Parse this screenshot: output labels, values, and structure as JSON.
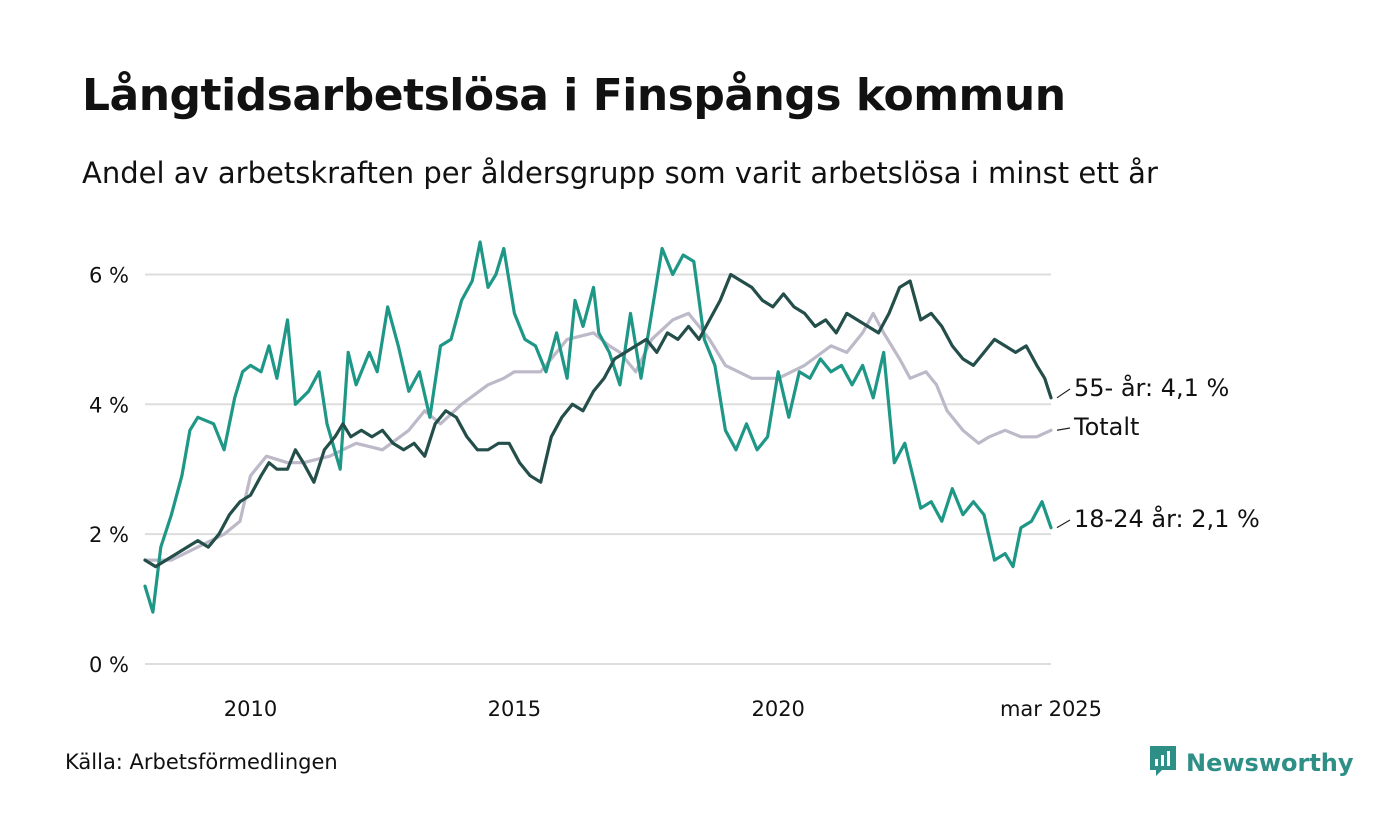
{
  "title": "Långtidsarbetslösa i Finspångs kommun",
  "subtitle": "Andel av arbetskraften per åldersgrupp som varit arbetslösa i minst ett år",
  "source": "Källa: Arbetsförmedlingen",
  "brand": "Newsworthy",
  "colors": {
    "age_55": "#234e4a",
    "total": "#bdb9c9",
    "age_18_24": "#1f9787",
    "grid": "#dddddd",
    "brand": "#2e8f86"
  },
  "chart_data": {
    "type": "line",
    "title": "Långtidsarbetslösa i Finspångs kommun",
    "subtitle": "Andel av arbetskraften per åldersgrupp som varit arbetslösa i minst ett år",
    "xlabel": "",
    "ylabel": "",
    "xlim": [
      2008.0,
      2025.17
    ],
    "ylim": [
      0,
      6.5
    ],
    "grid": true,
    "y_ticks": [
      {
        "value": 0,
        "label": "0 %"
      },
      {
        "value": 2,
        "label": "2 %"
      },
      {
        "value": 4,
        "label": "4 %"
      },
      {
        "value": 6,
        "label": "6 %"
      }
    ],
    "x_ticks": [
      {
        "value": 2010,
        "label": "2010"
      },
      {
        "value": 2015,
        "label": "2015"
      },
      {
        "value": 2020,
        "label": "2020"
      },
      {
        "value": 2025.17,
        "label": "mar 2025"
      }
    ],
    "series": [
      {
        "name": "Totalt",
        "label": "Totalt",
        "color_key": "total",
        "points": [
          [
            2008.0,
            1.6
          ],
          [
            2008.5,
            1.6
          ],
          [
            2009.0,
            1.8
          ],
          [
            2009.5,
            2.0
          ],
          [
            2009.8,
            2.2
          ],
          [
            2010.0,
            2.9
          ],
          [
            2010.3,
            3.2
          ],
          [
            2010.7,
            3.1
          ],
          [
            2011.0,
            3.1
          ],
          [
            2011.5,
            3.2
          ],
          [
            2012.0,
            3.4
          ],
          [
            2012.5,
            3.3
          ],
          [
            2013.0,
            3.6
          ],
          [
            2013.3,
            3.9
          ],
          [
            2013.6,
            3.7
          ],
          [
            2014.0,
            4.0
          ],
          [
            2014.5,
            4.3
          ],
          [
            2014.8,
            4.4
          ],
          [
            2015.0,
            4.5
          ],
          [
            2015.5,
            4.5
          ],
          [
            2016.0,
            5.0
          ],
          [
            2016.5,
            5.1
          ],
          [
            2016.8,
            4.9
          ],
          [
            2017.0,
            4.8
          ],
          [
            2017.3,
            4.5
          ],
          [
            2017.6,
            5.0
          ],
          [
            2018.0,
            5.3
          ],
          [
            2018.3,
            5.4
          ],
          [
            2018.7,
            5.0
          ],
          [
            2019.0,
            4.6
          ],
          [
            2019.5,
            4.4
          ],
          [
            2020.0,
            4.4
          ],
          [
            2020.5,
            4.6
          ],
          [
            2021.0,
            4.9
          ],
          [
            2021.3,
            4.8
          ],
          [
            2021.6,
            5.1
          ],
          [
            2021.8,
            5.4
          ],
          [
            2022.0,
            5.1
          ],
          [
            2022.3,
            4.7
          ],
          [
            2022.5,
            4.4
          ],
          [
            2022.8,
            4.5
          ],
          [
            2023.0,
            4.3
          ],
          [
            2023.2,
            3.9
          ],
          [
            2023.5,
            3.6
          ],
          [
            2023.8,
            3.4
          ],
          [
            2024.0,
            3.5
          ],
          [
            2024.3,
            3.6
          ],
          [
            2024.6,
            3.5
          ],
          [
            2024.9,
            3.5
          ],
          [
            2025.17,
            3.6
          ]
        ]
      },
      {
        "name": "18-24 år",
        "label": "18-24 år: 2,1 %",
        "color_key": "age_18_24",
        "points": [
          [
            2008.0,
            1.2
          ],
          [
            2008.15,
            0.8
          ],
          [
            2008.3,
            1.8
          ],
          [
            2008.5,
            2.3
          ],
          [
            2008.7,
            2.9
          ],
          [
            2008.85,
            3.6
          ],
          [
            2009.0,
            3.8
          ],
          [
            2009.3,
            3.7
          ],
          [
            2009.5,
            3.3
          ],
          [
            2009.7,
            4.1
          ],
          [
            2009.85,
            4.5
          ],
          [
            2010.0,
            4.6
          ],
          [
            2010.2,
            4.5
          ],
          [
            2010.35,
            4.9
          ],
          [
            2010.5,
            4.4
          ],
          [
            2010.7,
            5.3
          ],
          [
            2010.85,
            4.0
          ],
          [
            2011.1,
            4.2
          ],
          [
            2011.3,
            4.5
          ],
          [
            2011.45,
            3.7
          ],
          [
            2011.7,
            3.0
          ],
          [
            2011.85,
            4.8
          ],
          [
            2012.0,
            4.3
          ],
          [
            2012.25,
            4.8
          ],
          [
            2012.4,
            4.5
          ],
          [
            2012.6,
            5.5
          ],
          [
            2012.8,
            4.9
          ],
          [
            2013.0,
            4.2
          ],
          [
            2013.2,
            4.5
          ],
          [
            2013.4,
            3.8
          ],
          [
            2013.6,
            4.9
          ],
          [
            2013.8,
            5.0
          ],
          [
            2014.0,
            5.6
          ],
          [
            2014.2,
            5.9
          ],
          [
            2014.35,
            6.5
          ],
          [
            2014.5,
            5.8
          ],
          [
            2014.65,
            6.0
          ],
          [
            2014.8,
            6.4
          ],
          [
            2015.0,
            5.4
          ],
          [
            2015.2,
            5.0
          ],
          [
            2015.4,
            4.9
          ],
          [
            2015.6,
            4.5
          ],
          [
            2015.8,
            5.1
          ],
          [
            2016.0,
            4.4
          ],
          [
            2016.15,
            5.6
          ],
          [
            2016.3,
            5.2
          ],
          [
            2016.5,
            5.8
          ],
          [
            2016.6,
            5.1
          ],
          [
            2016.8,
            4.8
          ],
          [
            2017.0,
            4.3
          ],
          [
            2017.2,
            5.4
          ],
          [
            2017.4,
            4.4
          ],
          [
            2017.6,
            5.4
          ],
          [
            2017.8,
            6.4
          ],
          [
            2018.0,
            6.0
          ],
          [
            2018.2,
            6.3
          ],
          [
            2018.4,
            6.2
          ],
          [
            2018.6,
            5.0
          ],
          [
            2018.8,
            4.6
          ],
          [
            2019.0,
            3.6
          ],
          [
            2019.2,
            3.3
          ],
          [
            2019.4,
            3.7
          ],
          [
            2019.6,
            3.3
          ],
          [
            2019.8,
            3.5
          ],
          [
            2020.0,
            4.5
          ],
          [
            2020.2,
            3.8
          ],
          [
            2020.4,
            4.5
          ],
          [
            2020.6,
            4.4
          ],
          [
            2020.8,
            4.7
          ],
          [
            2021.0,
            4.5
          ],
          [
            2021.2,
            4.6
          ],
          [
            2021.4,
            4.3
          ],
          [
            2021.6,
            4.6
          ],
          [
            2021.8,
            4.1
          ],
          [
            2022.0,
            4.8
          ],
          [
            2022.2,
            3.1
          ],
          [
            2022.4,
            3.4
          ],
          [
            2022.55,
            2.9
          ],
          [
            2022.7,
            2.4
          ],
          [
            2022.9,
            2.5
          ],
          [
            2023.1,
            2.2
          ],
          [
            2023.3,
            2.7
          ],
          [
            2023.5,
            2.3
          ],
          [
            2023.7,
            2.5
          ],
          [
            2023.9,
            2.3
          ],
          [
            2024.1,
            1.6
          ],
          [
            2024.3,
            1.7
          ],
          [
            2024.45,
            1.5
          ],
          [
            2024.6,
            2.1
          ],
          [
            2024.8,
            2.2
          ],
          [
            2025.0,
            2.5
          ],
          [
            2025.17,
            2.1
          ]
        ]
      },
      {
        "name": "55- år",
        "label": "55- år: 4,1 %",
        "color_key": "age_55",
        "points": [
          [
            2008.0,
            1.6
          ],
          [
            2008.2,
            1.5
          ],
          [
            2008.4,
            1.6
          ],
          [
            2008.6,
            1.7
          ],
          [
            2008.8,
            1.8
          ],
          [
            2009.0,
            1.9
          ],
          [
            2009.2,
            1.8
          ],
          [
            2009.4,
            2.0
          ],
          [
            2009.6,
            2.3
          ],
          [
            2009.8,
            2.5
          ],
          [
            2010.0,
            2.6
          ],
          [
            2010.2,
            2.9
          ],
          [
            2010.35,
            3.1
          ],
          [
            2010.5,
            3.0
          ],
          [
            2010.7,
            3.0
          ],
          [
            2010.85,
            3.3
          ],
          [
            2011.0,
            3.1
          ],
          [
            2011.2,
            2.8
          ],
          [
            2011.4,
            3.3
          ],
          [
            2011.6,
            3.5
          ],
          [
            2011.75,
            3.7
          ],
          [
            2011.9,
            3.5
          ],
          [
            2012.1,
            3.6
          ],
          [
            2012.3,
            3.5
          ],
          [
            2012.5,
            3.6
          ],
          [
            2012.7,
            3.4
          ],
          [
            2012.9,
            3.3
          ],
          [
            2013.1,
            3.4
          ],
          [
            2013.3,
            3.2
          ],
          [
            2013.5,
            3.7
          ],
          [
            2013.7,
            3.9
          ],
          [
            2013.9,
            3.8
          ],
          [
            2014.1,
            3.5
          ],
          [
            2014.3,
            3.3
          ],
          [
            2014.5,
            3.3
          ],
          [
            2014.7,
            3.4
          ],
          [
            2014.9,
            3.4
          ],
          [
            2015.1,
            3.1
          ],
          [
            2015.3,
            2.9
          ],
          [
            2015.5,
            2.8
          ],
          [
            2015.7,
            3.5
          ],
          [
            2015.9,
            3.8
          ],
          [
            2016.1,
            4.0
          ],
          [
            2016.3,
            3.9
          ],
          [
            2016.5,
            4.2
          ],
          [
            2016.7,
            4.4
          ],
          [
            2016.9,
            4.7
          ],
          [
            2017.1,
            4.8
          ],
          [
            2017.3,
            4.9
          ],
          [
            2017.5,
            5.0
          ],
          [
            2017.7,
            4.8
          ],
          [
            2017.9,
            5.1
          ],
          [
            2018.1,
            5.0
          ],
          [
            2018.3,
            5.2
          ],
          [
            2018.5,
            5.0
          ],
          [
            2018.7,
            5.3
          ],
          [
            2018.9,
            5.6
          ],
          [
            2019.1,
            6.0
          ],
          [
            2019.3,
            5.9
          ],
          [
            2019.5,
            5.8
          ],
          [
            2019.7,
            5.6
          ],
          [
            2019.9,
            5.5
          ],
          [
            2020.1,
            5.7
          ],
          [
            2020.3,
            5.5
          ],
          [
            2020.5,
            5.4
          ],
          [
            2020.7,
            5.2
          ],
          [
            2020.9,
            5.3
          ],
          [
            2021.1,
            5.1
          ],
          [
            2021.3,
            5.4
          ],
          [
            2021.5,
            5.3
          ],
          [
            2021.7,
            5.2
          ],
          [
            2021.9,
            5.1
          ],
          [
            2022.1,
            5.4
          ],
          [
            2022.3,
            5.8
          ],
          [
            2022.5,
            5.9
          ],
          [
            2022.7,
            5.3
          ],
          [
            2022.9,
            5.4
          ],
          [
            2023.1,
            5.2
          ],
          [
            2023.3,
            4.9
          ],
          [
            2023.5,
            4.7
          ],
          [
            2023.7,
            4.6
          ],
          [
            2023.9,
            4.8
          ],
          [
            2024.1,
            5.0
          ],
          [
            2024.3,
            4.9
          ],
          [
            2024.5,
            4.8
          ],
          [
            2024.7,
            4.9
          ],
          [
            2024.9,
            4.6
          ],
          [
            2025.05,
            4.4
          ],
          [
            2025.17,
            4.1
          ]
        ]
      }
    ]
  }
}
